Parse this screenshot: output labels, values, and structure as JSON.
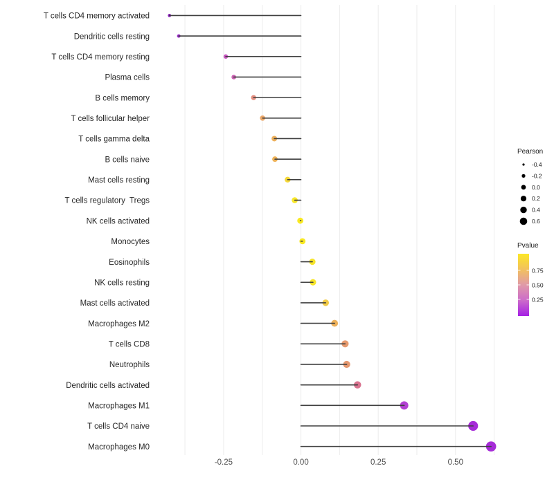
{
  "chart_data": {
    "type": "scatter",
    "variant": "lollipop",
    "orientation": "horizontal",
    "title": "",
    "xlabel": "",
    "ylabel": "",
    "categories": [
      "T cells CD4 memory activated",
      "Dendritic cells resting",
      "T cells CD4 memory resting",
      "Plasma cells",
      "B cells memory",
      "T cells follicular helper",
      "T cells gamma delta",
      "B cells naive",
      "Mast cells resting",
      "T cells regulatory  Tregs",
      "NK cells activated",
      "Monocytes",
      "Eosinophils",
      "NK cells resting",
      "Mast cells activated",
      "Macrophages M2",
      "T cells CD8",
      "Neutrophils",
      "Dendritic cells activated",
      "Macrophages M1",
      "T cells CD4 naive",
      "Macrophages M0"
    ],
    "series": [
      {
        "name": "Pearson",
        "values": [
          -0.425,
          -0.395,
          -0.243,
          -0.217,
          -0.153,
          -0.124,
          -0.086,
          -0.084,
          -0.043,
          -0.02,
          -0.002,
          0.005,
          0.037,
          0.039,
          0.08,
          0.109,
          0.143,
          0.148,
          0.183,
          0.334,
          0.557,
          0.615
        ]
      }
    ],
    "point_colors": [
      "#8a1bbe",
      "#9a27cc",
      "#c857c1",
      "#cb63b3",
      "#e28d7f",
      "#ebа768",
      "#edb05c",
      "#eeb35a",
      "#f5d839",
      "#f8e72b",
      "#f9e922",
      "#f9e922",
      "#f7e52a",
      "#f7e52a",
      "#f2cb47",
      "#edb15b",
      "#e69a6e",
      "#e5986f",
      "#d9738f",
      "#b341d3",
      "#a62bd8",
      "#a62bd8"
    ],
    "stem_color": "#3f3f3f",
    "grid": "vertical-only",
    "gridline_color": "#ececec",
    "xlim": [
      -0.476,
      0.664
    ],
    "x_ticks": {
      "values": [
        -0.25,
        0.0,
        0.25,
        0.5
      ],
      "labels": [
        "-0.25",
        "0.00",
        "0.25",
        "0.50"
      ]
    },
    "gridline_values": [
      -0.375,
      -0.25,
      -0.125,
      0.0,
      0.125,
      0.25,
      0.375,
      0.5,
      0.625
    ],
    "legend_position": "right",
    "size_legend": {
      "title": "Pearson",
      "dot_color": "#000000",
      "entries": [
        {
          "label": "-0.4",
          "diameter": 3.2
        },
        {
          "label": "-0.2",
          "diameter": 5.2
        },
        {
          "label": "0.0",
          "diameter": 6.8
        },
        {
          "label": "0.2",
          "diameter": 8.2
        },
        {
          "label": "0.4",
          "diameter": 9.4
        },
        {
          "label": "0.6",
          "diameter": 10.6
        }
      ]
    },
    "color_legend": {
      "title": "Pvalue",
      "tick_labels": [
        "0.75",
        "0.50",
        "0.25"
      ],
      "gradient_top_to_bottom": [
        "#fce726",
        "#f2c15e",
        "#e09aa8",
        "#cc6cca",
        "#a520e4"
      ]
    }
  },
  "text_colors": {
    "category_label": "#262626",
    "axis_tick_label": "#4d4d4d",
    "legend_text": "#1a1a1a"
  }
}
